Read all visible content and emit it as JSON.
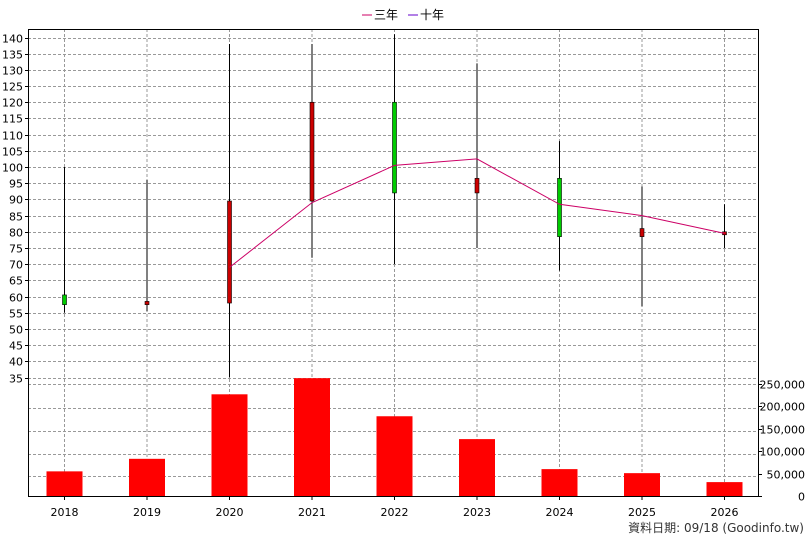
{
  "chart_data": {
    "type": "candlestick+bar",
    "legend": [
      {
        "label": "三年",
        "color": "#cc0066"
      },
      {
        "label": "十年",
        "color": "#6600cc"
      }
    ],
    "categories": [
      "2018",
      "2019",
      "2020",
      "2021",
      "2022",
      "2023",
      "2024",
      "2025",
      "2026"
    ],
    "price_axis": {
      "ylim": [
        35,
        140
      ],
      "ticks": [
        "35",
        "40",
        "45",
        "50",
        "55",
        "60",
        "65",
        "70",
        "75",
        "80",
        "85",
        "90",
        "95",
        "100",
        "105",
        "110",
        "115",
        "120",
        "125",
        "130",
        "135",
        "140"
      ]
    },
    "volume_axis": {
      "ylim": [
        0,
        250000
      ],
      "ticks": [
        "0",
        "50,000",
        "100,000",
        "150,000",
        "200,000",
        "250,000"
      ]
    },
    "candles": [
      {
        "year": "2018",
        "open": 57.5,
        "close": 60.5,
        "high": 100,
        "low": 55,
        "up": true
      },
      {
        "year": "2019",
        "open": 58.5,
        "close": 57.5,
        "high": 96,
        "low": 55.5,
        "up": false
      },
      {
        "year": "2020",
        "open": 89.5,
        "close": 58,
        "high": 138,
        "low": 35,
        "up": false
      },
      {
        "year": "2021",
        "open": 120,
        "close": 89.5,
        "high": 138,
        "low": 72,
        "up": false
      },
      {
        "year": "2022",
        "open": 92,
        "close": 120,
        "high": 141,
        "low": 70,
        "up": true
      },
      {
        "year": "2023",
        "open": 96.5,
        "close": 92,
        "high": 132,
        "low": 75,
        "up": false
      },
      {
        "year": "2024",
        "open": 78.5,
        "close": 96.5,
        "high": 108,
        "low": 68,
        "up": true
      },
      {
        "year": "2025",
        "open": 81,
        "close": 78.5,
        "high": 94,
        "low": 57,
        "up": false
      },
      {
        "year": "2026",
        "open": 80,
        "close": 79.5,
        "high": 88.5,
        "low": 75,
        "up": false
      }
    ],
    "three_year_line": {
      "name": "三年",
      "x": [
        "2020",
        "2021",
        "2022",
        "2023",
        "2024",
        "2025",
        "2026"
      ],
      "values": [
        69,
        89,
        100.5,
        102.5,
        88.5,
        85,
        79.5
      ]
    },
    "volume": [
      55000,
      83000,
      227000,
      263000,
      178000,
      127000,
      60000,
      51000,
      31000
    ],
    "grid": true,
    "legend_position": "top-center"
  },
  "credit": "資料日期: 09/18 (Goodinfo.tw)"
}
